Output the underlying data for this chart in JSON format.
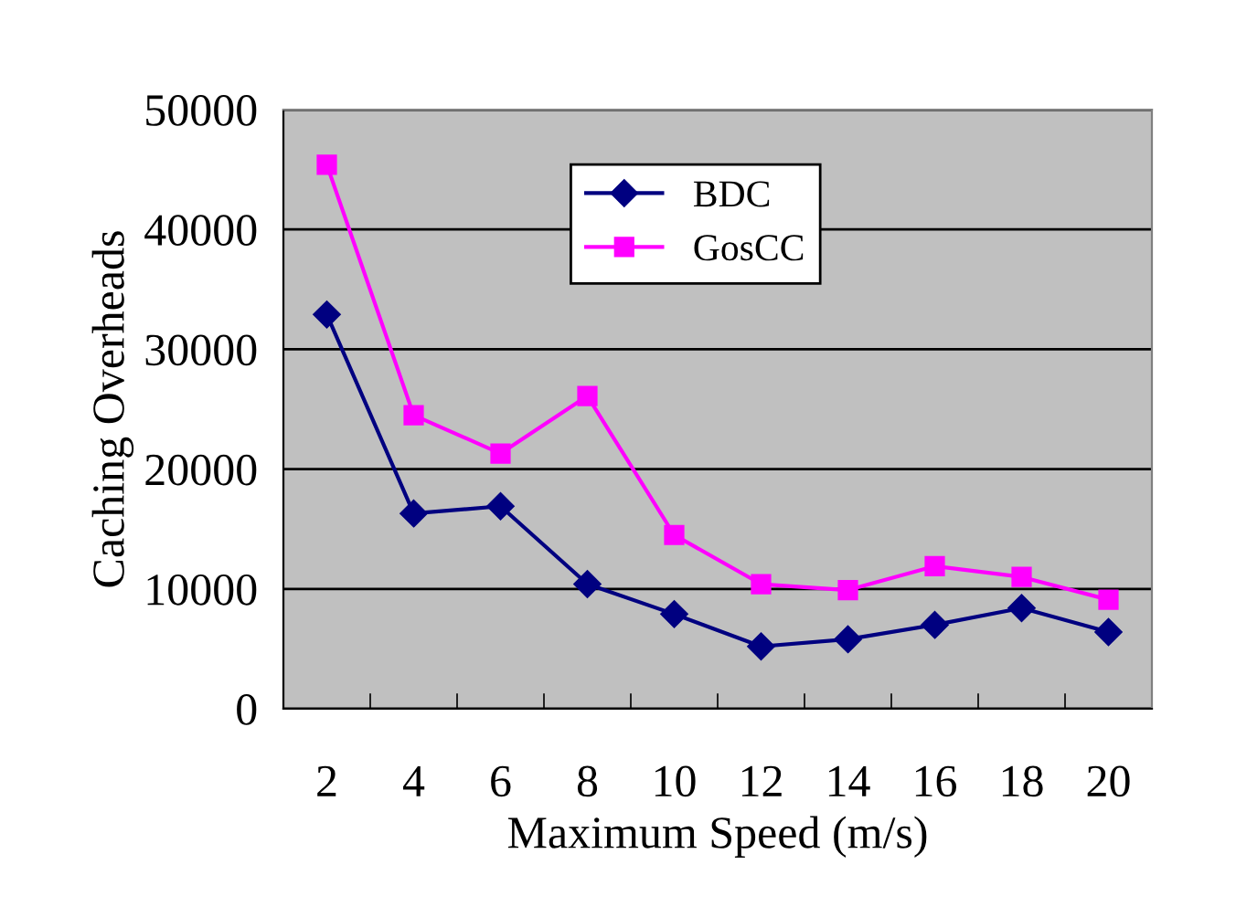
{
  "chart_data": {
    "type": "line",
    "xlabel": "Maximum Speed (m/s)",
    "ylabel": "Caching Overheads",
    "categories": [
      "2",
      "4",
      "6",
      "8",
      "10",
      "12",
      "14",
      "16",
      "18",
      "20"
    ],
    "series": [
      {
        "name": "BDC",
        "color": "#000080",
        "marker": "diamond",
        "values": [
          32900,
          16300,
          16900,
          10400,
          7900,
          5200,
          5800,
          7000,
          8400,
          6400
        ]
      },
      {
        "name": "GosCC",
        "color": "#ff00ff",
        "marker": "square",
        "values": [
          45400,
          24500,
          21300,
          26100,
          14500,
          10400,
          9900,
          11900,
          11000,
          9100
        ]
      }
    ],
    "ylim": [
      0,
      50000
    ],
    "yticks": [
      0,
      10000,
      20000,
      30000,
      40000,
      50000
    ],
    "grid": "y",
    "legend": "top right"
  }
}
